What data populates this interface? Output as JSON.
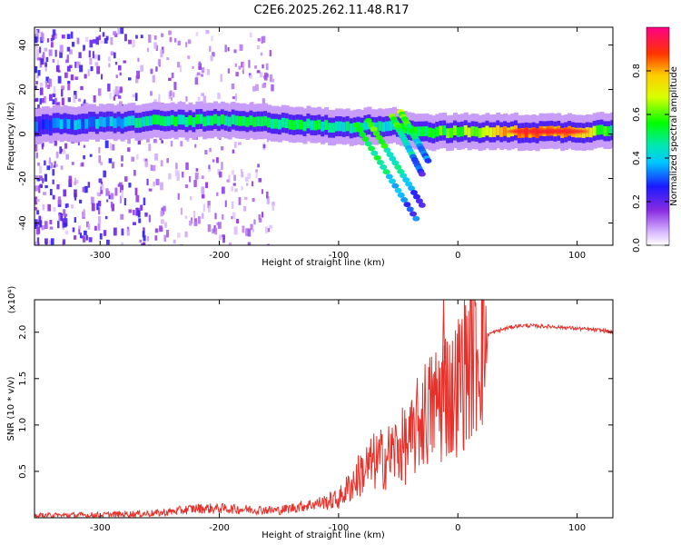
{
  "title": "C2E6.2025.262.11.48.R17",
  "chart_data": [
    {
      "type": "heatmap",
      "xlabel": "Height of straight line (km)",
      "ylabel": "Frequency (Hz)",
      "xlim": [
        -355,
        130
      ],
      "ylim": [
        -50,
        48
      ],
      "xticks": [
        -300,
        -200,
        -100,
        0,
        100
      ],
      "xtick_labels": [
        "-300",
        "-200",
        "-100",
        "0",
        "100"
      ],
      "yticks": [
        -40,
        -20,
        0,
        20,
        40
      ],
      "ytick_labels": [
        "-40",
        "-20",
        "0",
        "20",
        "40"
      ],
      "colorbar": {
        "label": "Normalized spectral amplitude",
        "range": [
          0,
          1
        ],
        "ticks": [
          0.0,
          0.2,
          0.4,
          0.6,
          0.8
        ],
        "tick_labels": [
          "0.0",
          "0.2",
          "0.4",
          "0.6",
          "0.8"
        ]
      },
      "ridge": {
        "x": [
          -355,
          -300,
          -250,
          -200,
          -150,
          -100,
          -60,
          -30,
          0,
          50,
          100,
          130
        ],
        "freq": [
          4,
          5,
          6,
          6,
          5,
          3,
          4,
          1,
          1,
          1,
          1,
          2
        ],
        "amplitude": [
          0.3,
          0.4,
          0.55,
          0.6,
          0.55,
          0.5,
          0.5,
          0.6,
          0.7,
          1.0,
          0.95,
          0.5
        ]
      },
      "branches": [
        {
          "x": [
            -85,
            -35
          ],
          "freq": [
            4,
            -38
          ]
        },
        {
          "x": [
            -75,
            -30
          ],
          "freq": [
            6,
            -32
          ]
        },
        {
          "x": [
            -55,
            -30
          ],
          "freq": [
            8,
            -18
          ]
        },
        {
          "x": [
            -48,
            -25
          ],
          "freq": [
            10,
            -12
          ]
        }
      ]
    },
    {
      "type": "line",
      "xlabel": "Height of straight line (km)",
      "ylabel": "SNR (10 * v/v)",
      "yexp_label": "(x10⁴)",
      "xlim": [
        -355,
        130
      ],
      "ylim": [
        0,
        2.35
      ],
      "xticks": [
        -300,
        -200,
        -100,
        0,
        100
      ],
      "xtick_labels": [
        "-300",
        "-200",
        "-100",
        "0",
        "100"
      ],
      "yticks": [
        0.5,
        1.0,
        1.5,
        2.0
      ],
      "ytick_labels": [
        "0.5",
        "1.0",
        "1.5",
        "2.0"
      ],
      "series": [
        {
          "name": "SNR",
          "color": "#e8302a",
          "x": [
            -355,
            -300,
            -250,
            -220,
            -200,
            -150,
            -120,
            -100,
            -90,
            -80,
            -70,
            -60,
            -50,
            -40,
            -30,
            -20,
            -12,
            -5,
            0,
            10,
            20,
            30,
            40,
            50,
            60,
            80,
            100,
            120,
            130
          ],
          "y": [
            0.02,
            0.03,
            0.05,
            0.1,
            0.1,
            0.08,
            0.15,
            0.2,
            0.35,
            0.5,
            0.6,
            0.65,
            0.75,
            0.8,
            1.1,
            1.2,
            1.4,
            1.3,
            1.45,
            1.75,
            1.95,
            2.0,
            2.04,
            2.07,
            2.07,
            2.06,
            2.04,
            2.02,
            2.0
          ]
        }
      ]
    }
  ]
}
